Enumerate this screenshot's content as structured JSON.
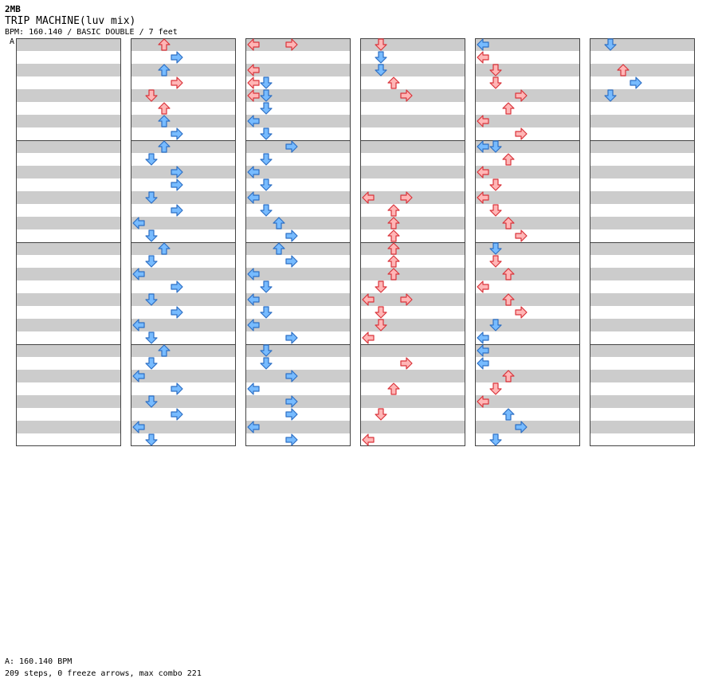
{
  "header": {
    "top_label": "2MB",
    "song_title": "TRIP MACHINE(luv mix)",
    "chart_info": "BPM: 160.140 / BASIC DOUBLE / 7 feet",
    "section_marker": "A"
  },
  "footer": {
    "bpm_line": "A: 160.140 BPM",
    "summary_line": "209 steps, 0 freeze arrows, max combo 221"
  },
  "colors": {
    "blue_fill": "#77bbff",
    "blue_stroke": "#2d6fc4",
    "red_fill": "#ffb6b6",
    "red_stroke": "#d9333a",
    "stripe": "#cccccc",
    "beat_line": "#444444"
  },
  "chart_data": {
    "type": "step-chart",
    "columns": 6,
    "measures_per_column": 4,
    "steps_per_measure": 8,
    "lanes": [
      "left",
      "down",
      "up",
      "right"
    ],
    "notes": [
      {
        "c": 1,
        "m": 0,
        "s": 0,
        "lane": "up",
        "color": "red"
      },
      {
        "c": 1,
        "m": 0,
        "s": 1,
        "lane": "right",
        "color": "blue"
      },
      {
        "c": 1,
        "m": 0,
        "s": 2,
        "lane": "up",
        "color": "blue"
      },
      {
        "c": 1,
        "m": 0,
        "s": 3,
        "lane": "right",
        "color": "red"
      },
      {
        "c": 1,
        "m": 0,
        "s": 4,
        "lane": "down",
        "color": "red"
      },
      {
        "c": 1,
        "m": 0,
        "s": 5,
        "lane": "up",
        "color": "red"
      },
      {
        "c": 1,
        "m": 0,
        "s": 6,
        "lane": "up",
        "color": "blue"
      },
      {
        "c": 1,
        "m": 0,
        "s": 7,
        "lane": "right",
        "color": "blue"
      },
      {
        "c": 1,
        "m": 1,
        "s": 0,
        "lane": "up",
        "color": "blue"
      },
      {
        "c": 1,
        "m": 1,
        "s": 1,
        "lane": "down",
        "color": "blue"
      },
      {
        "c": 1,
        "m": 1,
        "s": 2,
        "lane": "right",
        "color": "blue"
      },
      {
        "c": 1,
        "m": 1,
        "s": 3,
        "lane": "right",
        "color": "blue"
      },
      {
        "c": 1,
        "m": 1,
        "s": 4,
        "lane": "down",
        "color": "blue"
      },
      {
        "c": 1,
        "m": 1,
        "s": 5,
        "lane": "right",
        "color": "blue"
      },
      {
        "c": 1,
        "m": 1,
        "s": 6,
        "lane": "left",
        "color": "blue"
      },
      {
        "c": 1,
        "m": 1,
        "s": 7,
        "lane": "down",
        "color": "blue"
      },
      {
        "c": 1,
        "m": 2,
        "s": 0,
        "lane": "up",
        "color": "blue"
      },
      {
        "c": 1,
        "m": 2,
        "s": 1,
        "lane": "down",
        "color": "blue"
      },
      {
        "c": 1,
        "m": 2,
        "s": 2,
        "lane": "left",
        "color": "blue"
      },
      {
        "c": 1,
        "m": 2,
        "s": 3,
        "lane": "right",
        "color": "blue"
      },
      {
        "c": 1,
        "m": 2,
        "s": 4,
        "lane": "down",
        "color": "blue"
      },
      {
        "c": 1,
        "m": 2,
        "s": 5,
        "lane": "right",
        "color": "blue"
      },
      {
        "c": 1,
        "m": 2,
        "s": 6,
        "lane": "left",
        "color": "blue"
      },
      {
        "c": 1,
        "m": 2,
        "s": 7,
        "lane": "down",
        "color": "blue"
      },
      {
        "c": 1,
        "m": 3,
        "s": 0,
        "lane": "up",
        "color": "blue"
      },
      {
        "c": 1,
        "m": 3,
        "s": 1,
        "lane": "down",
        "color": "blue"
      },
      {
        "c": 1,
        "m": 3,
        "s": 2,
        "lane": "left",
        "color": "blue"
      },
      {
        "c": 1,
        "m": 3,
        "s": 3,
        "lane": "right",
        "color": "blue"
      },
      {
        "c": 1,
        "m": 3,
        "s": 4,
        "lane": "down",
        "color": "blue"
      },
      {
        "c": 1,
        "m": 3,
        "s": 5,
        "lane": "right",
        "color": "blue"
      },
      {
        "c": 1,
        "m": 3,
        "s": 6,
        "lane": "left",
        "color": "blue"
      },
      {
        "c": 1,
        "m": 3,
        "s": 7,
        "lane": "down",
        "color": "blue"
      },
      {
        "c": 2,
        "m": 0,
        "s": 0,
        "lane": "left",
        "color": "red"
      },
      {
        "c": 2,
        "m": 0,
        "s": 0,
        "lane": "right",
        "color": "red"
      },
      {
        "c": 2,
        "m": 0,
        "s": 2,
        "lane": "left",
        "color": "red"
      },
      {
        "c": 2,
        "m": 0,
        "s": 3,
        "lane": "down",
        "color": "blue"
      },
      {
        "c": 2,
        "m": 0,
        "s": 3,
        "lane": "left",
        "color": "red"
      },
      {
        "c": 2,
        "m": 0,
        "s": 4,
        "lane": "down",
        "color": "blue"
      },
      {
        "c": 2,
        "m": 0,
        "s": 4,
        "lane": "left",
        "color": "red"
      },
      {
        "c": 2,
        "m": 0,
        "s": 5,
        "lane": "down",
        "color": "blue"
      },
      {
        "c": 2,
        "m": 0,
        "s": 6,
        "lane": "left",
        "color": "blue"
      },
      {
        "c": 2,
        "m": 0,
        "s": 7,
        "lane": "down",
        "color": "blue"
      },
      {
        "c": 2,
        "m": 1,
        "s": 0,
        "lane": "right",
        "color": "blue"
      },
      {
        "c": 2,
        "m": 1,
        "s": 1,
        "lane": "down",
        "color": "blue"
      },
      {
        "c": 2,
        "m": 1,
        "s": 2,
        "lane": "left",
        "color": "blue"
      },
      {
        "c": 2,
        "m": 1,
        "s": 3,
        "lane": "down",
        "color": "blue"
      },
      {
        "c": 2,
        "m": 1,
        "s": 4,
        "lane": "left",
        "color": "blue"
      },
      {
        "c": 2,
        "m": 1,
        "s": 5,
        "lane": "down",
        "color": "blue"
      },
      {
        "c": 2,
        "m": 1,
        "s": 6,
        "lane": "up",
        "color": "blue"
      },
      {
        "c": 2,
        "m": 1,
        "s": 7,
        "lane": "right",
        "color": "blue"
      },
      {
        "c": 2,
        "m": 2,
        "s": 0,
        "lane": "up",
        "color": "blue"
      },
      {
        "c": 2,
        "m": 2,
        "s": 1,
        "lane": "right",
        "color": "blue"
      },
      {
        "c": 2,
        "m": 2,
        "s": 2,
        "lane": "left",
        "color": "blue"
      },
      {
        "c": 2,
        "m": 2,
        "s": 3,
        "lane": "down",
        "color": "blue"
      },
      {
        "c": 2,
        "m": 2,
        "s": 4,
        "lane": "left",
        "color": "blue"
      },
      {
        "c": 2,
        "m": 2,
        "s": 5,
        "lane": "down",
        "color": "blue"
      },
      {
        "c": 2,
        "m": 2,
        "s": 6,
        "lane": "left",
        "color": "blue"
      },
      {
        "c": 2,
        "m": 2,
        "s": 7,
        "lane": "right",
        "color": "blue"
      },
      {
        "c": 2,
        "m": 3,
        "s": 0,
        "lane": "down",
        "color": "blue"
      },
      {
        "c": 2,
        "m": 3,
        "s": 1,
        "lane": "down",
        "color": "blue"
      },
      {
        "c": 2,
        "m": 3,
        "s": 2,
        "lane": "right",
        "color": "blue"
      },
      {
        "c": 2,
        "m": 3,
        "s": 3,
        "lane": "left",
        "color": "blue"
      },
      {
        "c": 2,
        "m": 3,
        "s": 4,
        "lane": "right",
        "color": "blue"
      },
      {
        "c": 2,
        "m": 3,
        "s": 5,
        "lane": "right",
        "color": "blue"
      },
      {
        "c": 2,
        "m": 3,
        "s": 6,
        "lane": "left",
        "color": "blue"
      },
      {
        "c": 2,
        "m": 3,
        "s": 7,
        "lane": "right",
        "color": "blue"
      },
      {
        "c": 3,
        "m": 0,
        "s": 0,
        "lane": "down",
        "color": "red"
      },
      {
        "c": 3,
        "m": 0,
        "s": 1,
        "lane": "down",
        "color": "blue"
      },
      {
        "c": 3,
        "m": 0,
        "s": 2,
        "lane": "down",
        "color": "blue"
      },
      {
        "c": 3,
        "m": 0,
        "s": 3,
        "lane": "up",
        "color": "red"
      },
      {
        "c": 3,
        "m": 0,
        "s": 4,
        "lane": "right",
        "color": "red"
      },
      {
        "c": 3,
        "m": 1,
        "s": 4,
        "lane": "left",
        "color": "red"
      },
      {
        "c": 3,
        "m": 1,
        "s": 4,
        "lane": "right",
        "color": "red"
      },
      {
        "c": 3,
        "m": 1,
        "s": 5,
        "lane": "up",
        "color": "red"
      },
      {
        "c": 3,
        "m": 1,
        "s": 6,
        "lane": "up",
        "color": "red"
      },
      {
        "c": 3,
        "m": 1,
        "s": 7,
        "lane": "up",
        "color": "red"
      },
      {
        "c": 3,
        "m": 2,
        "s": 0,
        "lane": "up",
        "color": "red"
      },
      {
        "c": 3,
        "m": 2,
        "s": 1,
        "lane": "up",
        "color": "red"
      },
      {
        "c": 3,
        "m": 2,
        "s": 2,
        "lane": "up",
        "color": "red"
      },
      {
        "c": 3,
        "m": 2,
        "s": 3,
        "lane": "down",
        "color": "red"
      },
      {
        "c": 3,
        "m": 2,
        "s": 4,
        "lane": "left",
        "color": "red"
      },
      {
        "c": 3,
        "m": 2,
        "s": 4,
        "lane": "right",
        "color": "red"
      },
      {
        "c": 3,
        "m": 2,
        "s": 5,
        "lane": "down",
        "color": "red"
      },
      {
        "c": 3,
        "m": 2,
        "s": 6,
        "lane": "down",
        "color": "red"
      },
      {
        "c": 3,
        "m": 2,
        "s": 7,
        "lane": "left",
        "color": "red"
      },
      {
        "c": 3,
        "m": 3,
        "s": 1,
        "lane": "right",
        "color": "red"
      },
      {
        "c": 3,
        "m": 3,
        "s": 3,
        "lane": "up",
        "color": "red"
      },
      {
        "c": 3,
        "m": 3,
        "s": 5,
        "lane": "down",
        "color": "red"
      },
      {
        "c": 3,
        "m": 3,
        "s": 7,
        "lane": "left",
        "color": "red"
      },
      {
        "c": 4,
        "m": 0,
        "s": 0,
        "lane": "left",
        "color": "blue"
      },
      {
        "c": 4,
        "m": 0,
        "s": 1,
        "lane": "left",
        "color": "red"
      },
      {
        "c": 4,
        "m": 0,
        "s": 2,
        "lane": "down",
        "color": "red"
      },
      {
        "c": 4,
        "m": 0,
        "s": 3,
        "lane": "down",
        "color": "red"
      },
      {
        "c": 4,
        "m": 0,
        "s": 4,
        "lane": "right",
        "color": "red"
      },
      {
        "c": 4,
        "m": 0,
        "s": 5,
        "lane": "up",
        "color": "red"
      },
      {
        "c": 4,
        "m": 0,
        "s": 6,
        "lane": "left",
        "color": "red"
      },
      {
        "c": 4,
        "m": 0,
        "s": 7,
        "lane": "right",
        "color": "red"
      },
      {
        "c": 4,
        "m": 1,
        "s": 0,
        "lane": "down",
        "color": "blue"
      },
      {
        "c": 4,
        "m": 1,
        "s": 0,
        "lane": "left",
        "color": "blue"
      },
      {
        "c": 4,
        "m": 1,
        "s": 1,
        "lane": "up",
        "color": "red"
      },
      {
        "c": 4,
        "m": 1,
        "s": 2,
        "lane": "left",
        "color": "red"
      },
      {
        "c": 4,
        "m": 1,
        "s": 3,
        "lane": "down",
        "color": "red"
      },
      {
        "c": 4,
        "m": 1,
        "s": 4,
        "lane": "left",
        "color": "red"
      },
      {
        "c": 4,
        "m": 1,
        "s": 5,
        "lane": "down",
        "color": "red"
      },
      {
        "c": 4,
        "m": 1,
        "s": 6,
        "lane": "up",
        "color": "red"
      },
      {
        "c": 4,
        "m": 1,
        "s": 7,
        "lane": "right",
        "color": "red"
      },
      {
        "c": 4,
        "m": 2,
        "s": 0,
        "lane": "down",
        "color": "blue"
      },
      {
        "c": 4,
        "m": 2,
        "s": 1,
        "lane": "down",
        "color": "red"
      },
      {
        "c": 4,
        "m": 2,
        "s": 2,
        "lane": "up",
        "color": "red"
      },
      {
        "c": 4,
        "m": 2,
        "s": 3,
        "lane": "left",
        "color": "red"
      },
      {
        "c": 4,
        "m": 2,
        "s": 4,
        "lane": "up",
        "color": "red"
      },
      {
        "c": 4,
        "m": 2,
        "s": 5,
        "lane": "right",
        "color": "red"
      },
      {
        "c": 4,
        "m": 2,
        "s": 6,
        "lane": "down",
        "color": "blue"
      },
      {
        "c": 4,
        "m": 2,
        "s": 7,
        "lane": "left",
        "color": "blue"
      },
      {
        "c": 4,
        "m": 3,
        "s": 0,
        "lane": "left",
        "color": "blue"
      },
      {
        "c": 4,
        "m": 3,
        "s": 1,
        "lane": "left",
        "color": "blue"
      },
      {
        "c": 4,
        "m": 3,
        "s": 2,
        "lane": "up",
        "color": "red"
      },
      {
        "c": 4,
        "m": 3,
        "s": 3,
        "lane": "down",
        "color": "red"
      },
      {
        "c": 4,
        "m": 3,
        "s": 4,
        "lane": "left",
        "color": "red"
      },
      {
        "c": 4,
        "m": 3,
        "s": 5,
        "lane": "up",
        "color": "blue"
      },
      {
        "c": 4,
        "m": 3,
        "s": 6,
        "lane": "right",
        "color": "blue"
      },
      {
        "c": 4,
        "m": 3,
        "s": 7,
        "lane": "down",
        "color": "blue"
      },
      {
        "c": 5,
        "m": 0,
        "s": 0,
        "lane": "down",
        "color": "blue"
      },
      {
        "c": 5,
        "m": 0,
        "s": 2,
        "lane": "up",
        "color": "red"
      },
      {
        "c": 5,
        "m": 0,
        "s": 3,
        "lane": "right",
        "color": "blue"
      },
      {
        "c": 5,
        "m": 0,
        "s": 4,
        "lane": "down",
        "color": "blue"
      }
    ]
  }
}
